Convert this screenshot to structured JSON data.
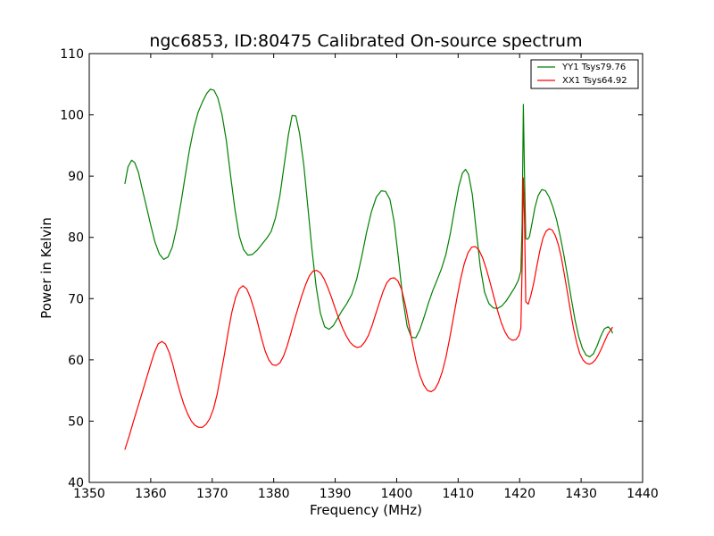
{
  "chart_data": {
    "type": "line",
    "title": "ngc6853, ID:80475 Calibrated On-source spectrum",
    "xlabel": "Frequency (MHz)",
    "ylabel": "Power in Kelvin",
    "xlim": [
      1350,
      1440
    ],
    "ylim": [
      40,
      110
    ],
    "xticks": [
      1350,
      1360,
      1370,
      1380,
      1390,
      1400,
      1410,
      1420,
      1430,
      1440
    ],
    "yticks": [
      40,
      50,
      60,
      70,
      80,
      90,
      100,
      110
    ],
    "grid": false,
    "legend_position": "top-right",
    "series": [
      {
        "name": "YY1 Tsys79.76",
        "color": "#008000",
        "points": [
          [
            1355.8,
            88.8
          ],
          [
            1356.3,
            91.5
          ],
          [
            1356.9,
            92.6
          ],
          [
            1357.4,
            92.2
          ],
          [
            1358.0,
            90.6
          ],
          [
            1358.6,
            88.0
          ],
          [
            1359.3,
            85.0
          ],
          [
            1360.0,
            82.0
          ],
          [
            1360.7,
            79.2
          ],
          [
            1361.4,
            77.3
          ],
          [
            1362.1,
            76.4
          ],
          [
            1362.8,
            76.8
          ],
          [
            1363.5,
            78.4
          ],
          [
            1364.2,
            81.5
          ],
          [
            1364.9,
            85.5
          ],
          [
            1365.6,
            90.0
          ],
          [
            1366.3,
            94.3
          ],
          [
            1367.0,
            97.8
          ],
          [
            1367.7,
            100.4
          ],
          [
            1368.4,
            102.1
          ],
          [
            1369.1,
            103.5
          ],
          [
            1369.7,
            104.2
          ],
          [
            1370.3,
            104.0
          ],
          [
            1370.9,
            102.8
          ],
          [
            1371.6,
            100.0
          ],
          [
            1372.3,
            95.8
          ],
          [
            1373.0,
            90.0
          ],
          [
            1373.7,
            84.5
          ],
          [
            1374.4,
            80.2
          ],
          [
            1375.1,
            78.0
          ],
          [
            1375.8,
            77.1
          ],
          [
            1376.5,
            77.2
          ],
          [
            1377.3,
            77.9
          ],
          [
            1378.1,
            78.9
          ],
          [
            1378.9,
            79.9
          ],
          [
            1379.6,
            81.0
          ],
          [
            1380.3,
            83.2
          ],
          [
            1381.0,
            86.8
          ],
          [
            1381.7,
            91.8
          ],
          [
            1382.4,
            96.8
          ],
          [
            1383.0,
            99.9
          ],
          [
            1383.6,
            99.8
          ],
          [
            1384.2,
            97.0
          ],
          [
            1384.9,
            91.8
          ],
          [
            1385.5,
            85.5
          ],
          [
            1386.2,
            78.2
          ],
          [
            1386.9,
            72.0
          ],
          [
            1387.6,
            67.6
          ],
          [
            1388.3,
            65.4
          ],
          [
            1389.0,
            65.0
          ],
          [
            1389.7,
            65.6
          ],
          [
            1390.4,
            66.8
          ],
          [
            1391.1,
            68.0
          ],
          [
            1391.9,
            69.2
          ],
          [
            1392.7,
            70.7
          ],
          [
            1393.5,
            73.2
          ],
          [
            1394.3,
            76.8
          ],
          [
            1395.1,
            80.8
          ],
          [
            1395.9,
            84.2
          ],
          [
            1396.7,
            86.6
          ],
          [
            1397.5,
            87.6
          ],
          [
            1398.2,
            87.5
          ],
          [
            1398.9,
            86.2
          ],
          [
            1399.6,
            82.5
          ],
          [
            1400.3,
            76.5
          ],
          [
            1401.0,
            70.0
          ],
          [
            1401.7,
            65.5
          ],
          [
            1402.4,
            63.7
          ],
          [
            1403.1,
            63.6
          ],
          [
            1403.8,
            65.0
          ],
          [
            1404.5,
            67.1
          ],
          [
            1405.2,
            69.4
          ],
          [
            1405.9,
            71.4
          ],
          [
            1406.6,
            73.1
          ],
          [
            1407.3,
            74.9
          ],
          [
            1408.0,
            77.2
          ],
          [
            1408.7,
            80.5
          ],
          [
            1409.4,
            84.5
          ],
          [
            1410.1,
            88.3
          ],
          [
            1410.7,
            90.5
          ],
          [
            1411.2,
            91.1
          ],
          [
            1411.7,
            90.3
          ],
          [
            1412.3,
            87.0
          ],
          [
            1412.9,
            81.5
          ],
          [
            1413.6,
            75.2
          ],
          [
            1414.3,
            71.0
          ],
          [
            1415.0,
            69.2
          ],
          [
            1415.7,
            68.5
          ],
          [
            1416.4,
            68.4
          ],
          [
            1417.1,
            68.8
          ],
          [
            1417.8,
            69.6
          ],
          [
            1418.5,
            70.7
          ],
          [
            1419.2,
            71.8
          ],
          [
            1419.8,
            73.0
          ],
          [
            1420.2,
            74.5
          ],
          [
            1420.4,
            82.0
          ],
          [
            1420.6,
            101.7
          ],
          [
            1420.8,
            90.0
          ],
          [
            1421.0,
            79.8
          ],
          [
            1421.3,
            79.7
          ],
          [
            1421.6,
            80.1
          ],
          [
            1422.0,
            82.2
          ],
          [
            1422.5,
            84.9
          ],
          [
            1423.0,
            86.8
          ],
          [
            1423.6,
            87.8
          ],
          [
            1424.2,
            87.6
          ],
          [
            1424.8,
            86.6
          ],
          [
            1425.4,
            85.0
          ],
          [
            1426.0,
            82.9
          ],
          [
            1426.6,
            80.2
          ],
          [
            1427.2,
            77.1
          ],
          [
            1427.8,
            73.6
          ],
          [
            1428.4,
            70.0
          ],
          [
            1429.0,
            66.6
          ],
          [
            1429.6,
            63.8
          ],
          [
            1430.2,
            61.9
          ],
          [
            1430.8,
            60.8
          ],
          [
            1431.4,
            60.5
          ],
          [
            1432.0,
            61.0
          ],
          [
            1432.6,
            62.3
          ],
          [
            1433.2,
            63.9
          ],
          [
            1433.8,
            65.1
          ],
          [
            1434.4,
            65.4
          ],
          [
            1434.9,
            64.9
          ],
          [
            1435.1,
            64.4
          ]
        ]
      },
      {
        "name": "XX1 Tsys64.92",
        "color": "#ff0000",
        "points": [
          [
            1355.8,
            45.4
          ],
          [
            1356.5,
            47.6
          ],
          [
            1357.2,
            50.0
          ],
          [
            1357.9,
            52.3
          ],
          [
            1358.6,
            54.6
          ],
          [
            1359.3,
            57.0
          ],
          [
            1360.0,
            59.3
          ],
          [
            1360.6,
            61.2
          ],
          [
            1361.2,
            62.6
          ],
          [
            1361.8,
            63.0
          ],
          [
            1362.4,
            62.6
          ],
          [
            1363.0,
            61.2
          ],
          [
            1363.6,
            59.2
          ],
          [
            1364.2,
            56.8
          ],
          [
            1364.8,
            54.6
          ],
          [
            1365.4,
            52.7
          ],
          [
            1366.0,
            51.2
          ],
          [
            1366.6,
            50.0
          ],
          [
            1367.2,
            49.3
          ],
          [
            1367.8,
            49.0
          ],
          [
            1368.4,
            49.0
          ],
          [
            1369.0,
            49.5
          ],
          [
            1369.6,
            50.4
          ],
          [
            1370.2,
            52.0
          ],
          [
            1370.8,
            54.4
          ],
          [
            1371.4,
            57.6
          ],
          [
            1372.0,
            61.0
          ],
          [
            1372.6,
            64.6
          ],
          [
            1373.2,
            67.8
          ],
          [
            1373.8,
            70.2
          ],
          [
            1374.4,
            71.6
          ],
          [
            1375.0,
            72.1
          ],
          [
            1375.6,
            71.6
          ],
          [
            1376.2,
            70.2
          ],
          [
            1376.8,
            68.3
          ],
          [
            1377.4,
            66.0
          ],
          [
            1378.0,
            63.6
          ],
          [
            1378.6,
            61.5
          ],
          [
            1379.2,
            60.0
          ],
          [
            1379.8,
            59.2
          ],
          [
            1380.4,
            59.1
          ],
          [
            1381.0,
            59.5
          ],
          [
            1381.6,
            60.6
          ],
          [
            1382.2,
            62.3
          ],
          [
            1382.8,
            64.4
          ],
          [
            1383.4,
            66.6
          ],
          [
            1384.0,
            68.6
          ],
          [
            1384.6,
            70.6
          ],
          [
            1385.2,
            72.3
          ],
          [
            1385.8,
            73.7
          ],
          [
            1386.4,
            74.5
          ],
          [
            1387.0,
            74.6
          ],
          [
            1387.6,
            74.2
          ],
          [
            1388.2,
            73.2
          ],
          [
            1388.8,
            71.8
          ],
          [
            1389.4,
            70.2
          ],
          [
            1390.0,
            68.4
          ],
          [
            1390.6,
            66.7
          ],
          [
            1391.2,
            65.2
          ],
          [
            1391.8,
            63.9
          ],
          [
            1392.4,
            62.9
          ],
          [
            1393.0,
            62.3
          ],
          [
            1393.6,
            62.0
          ],
          [
            1394.2,
            62.2
          ],
          [
            1394.8,
            62.9
          ],
          [
            1395.4,
            64.0
          ],
          [
            1396.0,
            65.6
          ],
          [
            1396.6,
            67.5
          ],
          [
            1397.2,
            69.4
          ],
          [
            1397.8,
            71.2
          ],
          [
            1398.4,
            72.6
          ],
          [
            1399.0,
            73.3
          ],
          [
            1399.6,
            73.4
          ],
          [
            1400.2,
            72.9
          ],
          [
            1400.8,
            71.5
          ],
          [
            1401.4,
            69.0
          ],
          [
            1402.0,
            65.8
          ],
          [
            1402.6,
            62.5
          ],
          [
            1403.2,
            59.6
          ],
          [
            1403.8,
            57.4
          ],
          [
            1404.4,
            55.9
          ],
          [
            1405.0,
            55.0
          ],
          [
            1405.6,
            54.8
          ],
          [
            1406.2,
            55.2
          ],
          [
            1406.8,
            56.3
          ],
          [
            1407.4,
            58.0
          ],
          [
            1408.0,
            60.4
          ],
          [
            1408.6,
            63.4
          ],
          [
            1409.2,
            66.7
          ],
          [
            1409.8,
            70.1
          ],
          [
            1410.4,
            73.2
          ],
          [
            1411.0,
            75.7
          ],
          [
            1411.6,
            77.5
          ],
          [
            1412.2,
            78.4
          ],
          [
            1412.8,
            78.5
          ],
          [
            1413.4,
            77.9
          ],
          [
            1414.0,
            76.6
          ],
          [
            1414.6,
            74.8
          ],
          [
            1415.2,
            72.6
          ],
          [
            1415.8,
            70.3
          ],
          [
            1416.4,
            68.1
          ],
          [
            1417.0,
            66.1
          ],
          [
            1417.6,
            64.6
          ],
          [
            1418.2,
            63.6
          ],
          [
            1418.8,
            63.2
          ],
          [
            1419.4,
            63.3
          ],
          [
            1419.9,
            64.0
          ],
          [
            1420.2,
            65.2
          ],
          [
            1420.4,
            75.0
          ],
          [
            1420.6,
            89.7
          ],
          [
            1420.8,
            83.0
          ],
          [
            1421.0,
            69.5
          ],
          [
            1421.4,
            69.1
          ],
          [
            1421.8,
            70.4
          ],
          [
            1422.3,
            72.6
          ],
          [
            1422.8,
            75.3
          ],
          [
            1423.3,
            77.9
          ],
          [
            1423.8,
            79.9
          ],
          [
            1424.3,
            81.0
          ],
          [
            1424.8,
            81.4
          ],
          [
            1425.3,
            81.2
          ],
          [
            1425.8,
            80.3
          ],
          [
            1426.3,
            78.8
          ],
          [
            1426.8,
            76.6
          ],
          [
            1427.3,
            73.8
          ],
          [
            1427.8,
            70.8
          ],
          [
            1428.3,
            67.8
          ],
          [
            1428.8,
            65.0
          ],
          [
            1429.3,
            62.7
          ],
          [
            1429.8,
            61.0
          ],
          [
            1430.3,
            60.0
          ],
          [
            1430.8,
            59.5
          ],
          [
            1431.3,
            59.3
          ],
          [
            1431.8,
            59.5
          ],
          [
            1432.3,
            60.0
          ],
          [
            1432.8,
            60.8
          ],
          [
            1433.3,
            61.8
          ],
          [
            1433.8,
            63.0
          ],
          [
            1434.3,
            64.1
          ],
          [
            1434.8,
            64.9
          ],
          [
            1435.1,
            65.3
          ]
        ]
      }
    ]
  }
}
